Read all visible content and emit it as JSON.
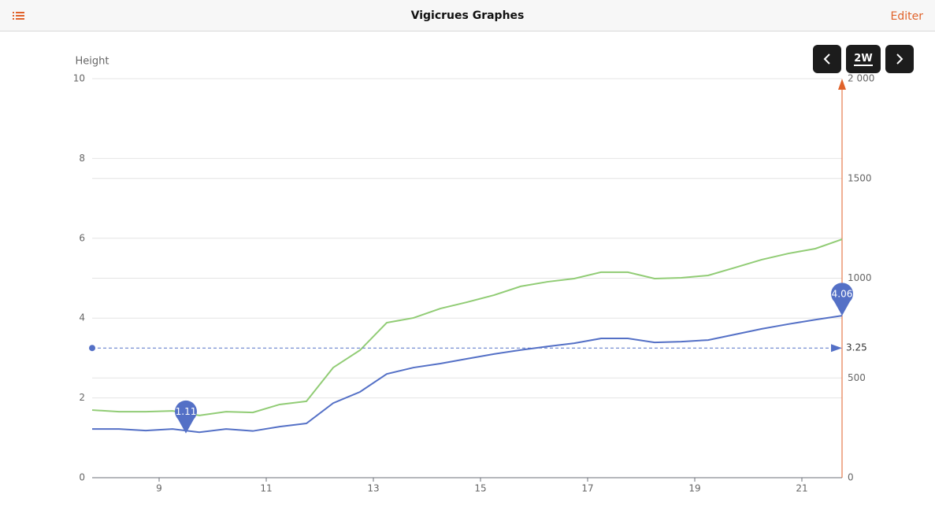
{
  "header": {
    "title": "Vigicrues Graphes",
    "action": "Editer"
  },
  "controls": {
    "range": "2W"
  },
  "chart_data": {
    "type": "line",
    "y_label": "Height",
    "x": [
      7.75,
      8.25,
      8.75,
      9.25,
      9.75,
      10.25,
      10.75,
      11.25,
      11.75,
      12.25,
      12.75,
      13.25,
      13.75,
      14.25,
      14.75,
      15.25,
      15.75,
      16.25,
      16.75,
      17.25,
      17.75,
      18.25,
      18.75,
      19.25,
      19.75,
      20.25,
      20.75,
      21.25,
      21.75
    ],
    "xlim": [
      7.75,
      21.75
    ],
    "xticks": [
      9,
      11,
      13,
      15,
      17,
      19,
      21
    ],
    "ylim": [
      0,
      10
    ],
    "yticks": [
      0,
      2,
      4,
      6,
      8,
      10
    ],
    "y2lim": [
      0,
      2000
    ],
    "y2ticks": [
      0,
      500,
      1000,
      1500,
      {
        "value": 2000,
        "label": "2 000"
      }
    ],
    "y2color": "#e0622a",
    "grid": true,
    "series": [
      {
        "color": "#91cc75",
        "axis": "y2",
        "values": [
          339,
          331,
          331,
          335,
          312,
          331,
          327,
          367,
          383,
          552,
          639,
          777,
          801,
          848,
          880,
          915,
          959,
          982,
          998,
          1030,
          1030,
          998,
          1002,
          1014,
          1053,
          1093,
          1124,
          1148,
          1195
        ]
      },
      {
        "color": "#5470c6",
        "values": [
          1.22,
          1.22,
          1.18,
          1.22,
          1.14,
          1.22,
          1.17,
          1.28,
          1.36,
          1.87,
          2.15,
          2.6,
          2.76,
          2.86,
          2.98,
          3.1,
          3.2,
          3.29,
          3.37,
          3.49,
          3.49,
          3.39,
          3.41,
          3.45,
          3.59,
          3.73,
          3.85,
          3.96,
          4.06
        ]
      }
    ],
    "markers": [
      {
        "x": 9.5,
        "value": 1.11
      },
      {
        "x": 21.75,
        "value": 4.06
      }
    ],
    "threshold": 3.25
  }
}
